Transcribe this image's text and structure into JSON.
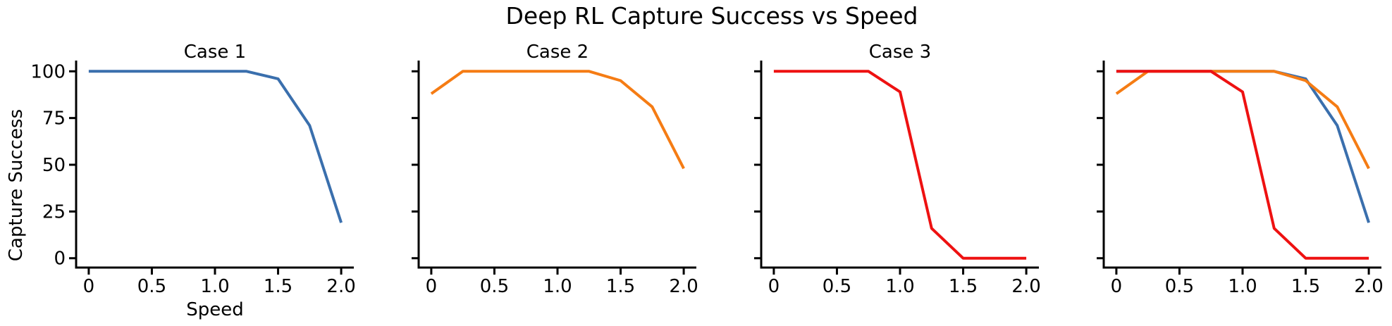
{
  "chart_data": {
    "type": "line",
    "title": "Deep RL Capture Success vs Speed",
    "xlabel": "Speed",
    "ylabel": "Capture Success",
    "xlim": [
      -0.1,
      2.1
    ],
    "ylim": [
      -5,
      105
    ],
    "xticks": [
      0,
      0.5,
      1.0,
      1.5,
      2.0
    ],
    "xtick_labels": [
      "0",
      "0.5",
      "1.0",
      "1.5",
      "2.0"
    ],
    "yticks": [
      0,
      25,
      50,
      75,
      100
    ],
    "ytick_labels": [
      "0",
      "25",
      "50",
      "75",
      "100"
    ],
    "grid": false,
    "x": [
      0,
      0.25,
      0.5,
      0.75,
      1.0,
      1.25,
      1.5,
      1.75,
      2.0
    ],
    "series": [
      {
        "name": "Case 1",
        "color": "#3a6fad",
        "values": [
          100,
          100,
          100,
          100,
          100,
          100,
          96,
          71,
          19
        ]
      },
      {
        "name": "Case 2",
        "color": "#f57c14",
        "values": [
          88,
          100,
          100,
          100,
          100,
          100,
          95,
          81,
          48
        ]
      },
      {
        "name": "Case 3",
        "color": "#ee1111",
        "values": [
          100,
          100,
          100,
          100,
          89,
          16,
          0,
          0,
          0
        ]
      }
    ],
    "panels": [
      {
        "title": "Case 1",
        "series": [
          0
        ]
      },
      {
        "title": "Case 2",
        "series": [
          1
        ]
      },
      {
        "title": "Case 3",
        "series": [
          2
        ]
      },
      {
        "title": "",
        "series": [
          0,
          1,
          2
        ]
      }
    ]
  }
}
